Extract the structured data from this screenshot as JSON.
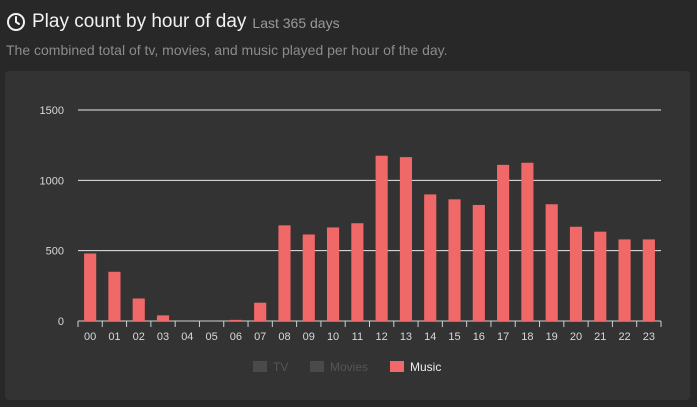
{
  "header": {
    "title": "Play count by hour of day",
    "range": "Last 365 days",
    "description": "The combined total of tv, movies, and music played per hour of the day."
  },
  "colors": {
    "music": "#f06868",
    "tv_inactive": "#4a4a4a",
    "movies_inactive": "#4a4a4a",
    "legend_inactive_text": "#555555",
    "legend_active_text": "#eeeeee"
  },
  "chart_data": {
    "type": "bar",
    "title": "",
    "xlabel": "",
    "ylabel": "",
    "ylim": [
      0,
      1500
    ],
    "yticks": [
      0,
      500,
      1000,
      1500
    ],
    "grid": true,
    "legend_position": "bottom",
    "categories": [
      "00",
      "01",
      "02",
      "03",
      "04",
      "05",
      "06",
      "07",
      "08",
      "09",
      "10",
      "11",
      "12",
      "13",
      "14",
      "15",
      "16",
      "17",
      "18",
      "19",
      "20",
      "21",
      "22",
      "23"
    ],
    "series": [
      {
        "name": "TV",
        "active": false,
        "values": [
          0,
          0,
          0,
          0,
          0,
          0,
          0,
          0,
          0,
          0,
          0,
          0,
          0,
          0,
          0,
          0,
          0,
          0,
          0,
          0,
          0,
          0,
          0,
          0
        ]
      },
      {
        "name": "Movies",
        "active": false,
        "values": [
          0,
          0,
          0,
          0,
          0,
          0,
          0,
          0,
          0,
          0,
          0,
          0,
          0,
          0,
          0,
          0,
          0,
          0,
          0,
          0,
          0,
          0,
          0,
          0
        ]
      },
      {
        "name": "Music",
        "active": true,
        "values": [
          480,
          350,
          160,
          40,
          0,
          0,
          8,
          130,
          680,
          615,
          665,
          695,
          1175,
          1165,
          900,
          865,
          825,
          1110,
          1125,
          830,
          670,
          635,
          580,
          580
        ]
      }
    ]
  }
}
